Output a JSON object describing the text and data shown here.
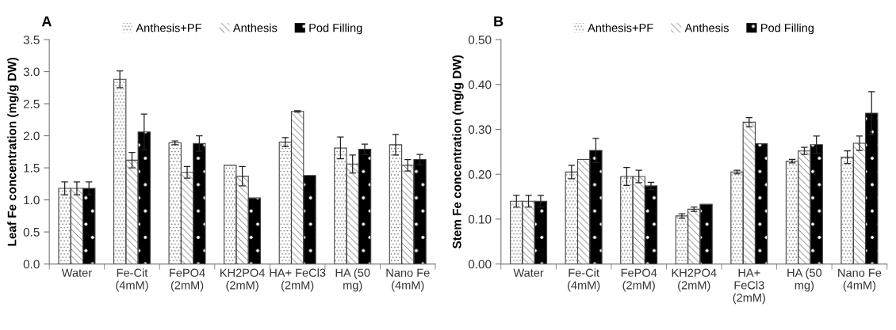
{
  "chart_data": [
    {
      "type": "bar",
      "title": "A",
      "ylabel": "Leaf Fe concentration (mg/g DW)",
      "categories": [
        "Water",
        "Fe-Cit\n(4mM)",
        "FePO4\n(2mM)",
        "KH2PO4\n(2mM)",
        "HA+ FeCl3\n(2mM)",
        "HA (50\nmg)",
        "Nano Fe\n(4mM)"
      ],
      "series": [
        {
          "name": "Anthesis+PF",
          "color": "#ffffff",
          "values": [
            1.18,
            2.88,
            1.89,
            1.54,
            1.9,
            1.81,
            1.86
          ],
          "errors": [
            0.1,
            0.13,
            0.03,
            null,
            0.07,
            0.17,
            0.16
          ]
        },
        {
          "name": "Anthesis",
          "color": "#ffffff",
          "values": [
            1.18,
            1.62,
            1.43,
            1.37,
            2.38,
            1.56,
            1.54
          ],
          "errors": [
            0.1,
            0.12,
            0.09,
            0.15,
            0.01,
            0.14,
            0.09
          ]
        },
        {
          "name": "Pod Filling",
          "color": "#000000",
          "values": [
            1.18,
            2.06,
            1.88,
            1.03,
            1.38,
            1.79,
            1.63
          ],
          "errors": [
            0.1,
            0.28,
            0.12,
            null,
            null,
            0.08,
            0.08
          ]
        }
      ],
      "ylim": [
        0,
        3.5
      ],
      "yticks": [
        {
          "value": 0,
          "label": "0.0"
        },
        {
          "value": 0.5,
          "label": "0.5"
        },
        {
          "value": 1,
          "label": "1.0"
        },
        {
          "value": 1.5,
          "label": "1.5"
        },
        {
          "value": 2,
          "label": "2.0"
        },
        {
          "value": 2.5,
          "label": "2.5"
        },
        {
          "value": 3,
          "label": "3.0"
        },
        {
          "value": 3.5,
          "label": "3.5"
        }
      ],
      "grid": false,
      "legend": "top"
    },
    {
      "type": "bar",
      "title": "B",
      "ylabel": "Stem Fe concentration (mg/g DW)",
      "categories": [
        "Water",
        "Fe-Cit\n(4mM)",
        "FePO4\n(2mM)",
        "KH2PO4\n(2mM)",
        "HA+\nFeCl3\n(2mM)",
        "HA (50\nmg)",
        "Nano Fe\n(4mM)"
      ],
      "series": [
        {
          "name": "Anthesis+PF",
          "color": "#ffffff",
          "values": [
            0.14,
            0.205,
            0.195,
            0.107,
            0.205,
            0.229,
            0.238
          ],
          "errors": [
            0.013,
            0.015,
            0.02,
            0.005,
            0.004,
            0.004,
            0.014
          ]
        },
        {
          "name": "Anthesis",
          "color": "#ffffff",
          "values": [
            0.14,
            0.233,
            0.195,
            0.122,
            0.316,
            0.252,
            0.269
          ],
          "errors": [
            0.013,
            null,
            0.014,
            0.005,
            0.01,
            0.008,
            0.016
          ]
        },
        {
          "name": "Pod Filling",
          "color": "#000000",
          "values": [
            0.14,
            0.253,
            0.174,
            0.133,
            0.268,
            0.266,
            0.336
          ],
          "errors": [
            0.013,
            0.027,
            0.008,
            null,
            null,
            0.019,
            0.048
          ]
        }
      ],
      "ylim": [
        0,
        0.5
      ],
      "yticks": [
        {
          "value": 0,
          "label": "0.00"
        },
        {
          "value": 0.1,
          "label": "0.10"
        },
        {
          "value": 0.2,
          "label": "0.20"
        },
        {
          "value": 0.3,
          "label": "0.30"
        },
        {
          "value": 0.4,
          "label": "0.40"
        },
        {
          "value": 0.5,
          "label": "0.50"
        }
      ],
      "grid": false,
      "legend": "top"
    }
  ]
}
